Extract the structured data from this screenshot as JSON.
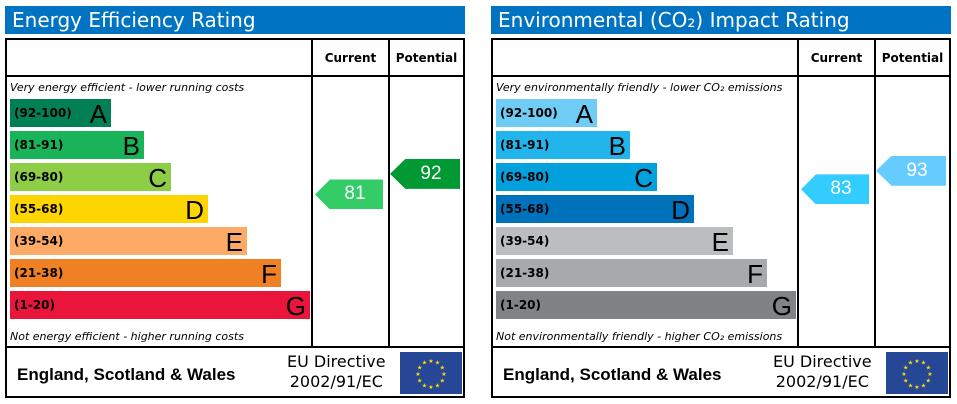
{
  "chart_data": [
    {
      "type": "bar",
      "title": "Energy Efficiency Rating",
      "columns": [
        "Current",
        "Potential"
      ],
      "top_note": "Very energy efficient - lower running costs",
      "bottom_note": "Not energy efficient - higher running costs",
      "bands": [
        {
          "range": "(92-100)",
          "letter": "A",
          "color": "#008054"
        },
        {
          "range": "(81-91)",
          "letter": "B",
          "color": "#19b459"
        },
        {
          "range": "(69-80)",
          "letter": "C",
          "color": "#8dce46"
        },
        {
          "range": "(55-68)",
          "letter": "D",
          "color": "#ffd500"
        },
        {
          "range": "(39-54)",
          "letter": "E",
          "color": "#fcaa65"
        },
        {
          "range": "(21-38)",
          "letter": "F",
          "color": "#ef8023"
        },
        {
          "range": "(1-20)",
          "letter": "G",
          "color": "#e9153b"
        }
      ],
      "current": {
        "value": "81",
        "color": "#33cc66"
      },
      "potential": {
        "value": "92",
        "color": "#009933"
      },
      "region": "England, Scotland & Wales",
      "directive_line1": "EU Directive",
      "directive_line2": "2002/91/EC"
    },
    {
      "type": "bar",
      "title": "Environmental (CO₂) Impact Rating",
      "columns": [
        "Current",
        "Potential"
      ],
      "top_note": "Very environmentally friendly - lower CO₂ emissions",
      "bottom_note": "Not environmentally friendly - higher CO₂ emissions",
      "bands": [
        {
          "range": "(92-100)",
          "letter": "A",
          "color": "#6fcdf5"
        },
        {
          "range": "(81-91)",
          "letter": "B",
          "color": "#22b5eb"
        },
        {
          "range": "(69-80)",
          "letter": "C",
          "color": "#02a0dc"
        },
        {
          "range": "(55-68)",
          "letter": "D",
          "color": "#0072bc"
        },
        {
          "range": "(39-54)",
          "letter": "E",
          "color": "#bbbdbf"
        },
        {
          "range": "(21-38)",
          "letter": "F",
          "color": "#a7a9ac"
        },
        {
          "range": "(1-20)",
          "letter": "G",
          "color": "#808285"
        }
      ],
      "current": {
        "value": "83",
        "color": "#33ccff"
      },
      "potential": {
        "value": "93",
        "color": "#66ccff"
      },
      "region": "England, Scotland & Wales",
      "directive_line1": "EU Directive",
      "directive_line2": "2002/91/EC"
    }
  ]
}
